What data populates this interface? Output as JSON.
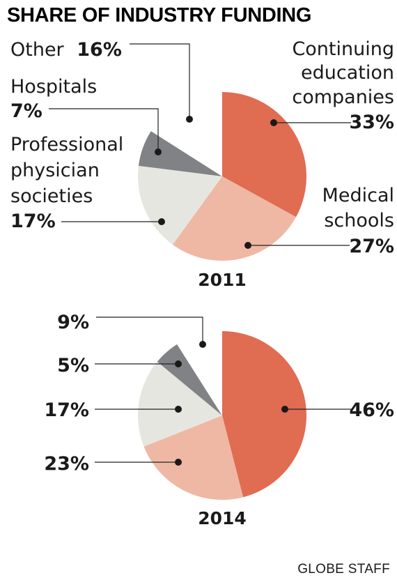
{
  "title": "SHARE OF INDUSTRY FUNDING",
  "credit": "GLOBE STAFF",
  "colors": {
    "continuing_education": "#e06c52",
    "medical_schools": "#efb8a4",
    "professional_societies": "#e6e6e1",
    "hospitals": "#808285",
    "other": "#ffffff"
  },
  "chart_data": [
    {
      "type": "pie",
      "year_label": "2011",
      "categories": [
        "Continuing education companies",
        "Medical schools",
        "Professional physician societies",
        "Hospitals",
        "Other"
      ],
      "values": [
        33,
        27,
        17,
        7,
        16
      ],
      "value_labels": [
        "33%",
        "27%",
        "17%",
        "7%",
        "16%"
      ],
      "label_lines": {
        "continuing": [
          "Continuing",
          "education",
          "companies"
        ],
        "medical": [
          "Medical",
          "schools"
        ],
        "professional": [
          "Professional",
          "physician",
          "societies"
        ],
        "hospitals": [
          "Hospitals"
        ],
        "other": [
          "Other"
        ]
      }
    },
    {
      "type": "pie",
      "year_label": "2014",
      "categories": [
        "Continuing education companies",
        "Medical schools",
        "Professional physician societies",
        "Hospitals",
        "Other"
      ],
      "values": [
        46,
        23,
        17,
        5,
        9
      ],
      "value_labels": [
        "46%",
        "23%",
        "17%",
        "5%",
        "9%"
      ]
    }
  ]
}
